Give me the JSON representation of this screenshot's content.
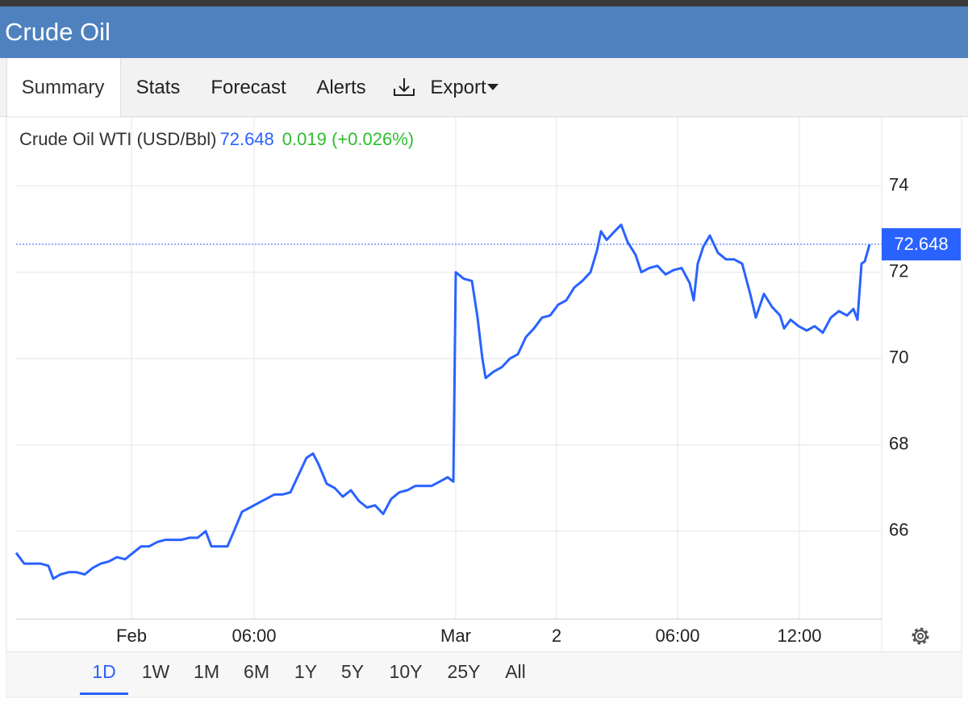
{
  "header": {
    "title": "Crude Oil"
  },
  "tabs": [
    "Summary",
    "Stats",
    "Forecast",
    "Alerts",
    "Export"
  ],
  "chart_data": {
    "type": "line",
    "x": [
      0,
      1,
      2,
      3,
      4,
      4.6,
      5.5,
      6.5,
      7.5,
      8.5,
      9.5,
      10.5,
      11.5,
      12.5,
      13.5,
      14.5,
      15.5,
      16.5,
      17.5,
      18.5,
      19.5,
      20.5,
      21.5,
      22.5,
      23.5,
      24.2,
      25.2,
      26.2,
      27,
      28,
      29,
      30,
      31,
      32,
      33,
      34,
      35,
      36,
      36.8,
      37.5,
      38.5,
      39.5,
      40.5,
      41.5,
      42.5,
      43.5,
      44.5,
      45.5,
      46.5,
      47.5,
      48.5,
      49.5,
      50.5,
      51.5,
      52.5,
      53.5,
      54.2,
      54.5,
      55.5,
      56.5,
      57.2,
      57.8,
      58.2,
      59.2,
      60.2,
      61.2,
      62.2,
      63.2,
      64.2,
      65.2,
      66.2,
      67.2,
      68.2,
      69.2,
      70.2,
      71.2,
      72,
      72.5,
      73.2,
      74.2,
      75,
      75.8,
      76.8,
      77.5,
      78.5,
      79.5,
      80.5,
      81.5,
      82.5,
      83.5,
      84,
      84.5,
      85.2,
      86,
      87,
      88,
      89,
      90,
      91,
      91.7,
      92.7,
      93.7,
      94.7,
      95.2,
      96,
      97,
      98,
      99,
      100,
      101,
      102,
      103,
      103.8,
      104.3,
      104.8,
      105.2,
      105.8
    ],
    "series": [
      {
        "name": "Crude Oil WTI (USD/Bbl)",
        "color": "#2962ff",
        "values": [
          65.5,
          65.25,
          65.25,
          65.25,
          65.2,
          64.9,
          65.0,
          65.05,
          65.05,
          65.0,
          65.15,
          65.25,
          65.3,
          65.4,
          65.35,
          65.5,
          65.65,
          65.65,
          65.75,
          65.8,
          65.8,
          65.8,
          65.85,
          65.85,
          66.0,
          65.65,
          65.65,
          65.65,
          66.0,
          66.45,
          66.55,
          66.65,
          66.75,
          66.85,
          66.85,
          66.9,
          67.3,
          67.7,
          67.8,
          67.55,
          67.1,
          67.0,
          66.8,
          66.95,
          66.7,
          66.55,
          66.6,
          66.4,
          66.75,
          66.9,
          66.95,
          67.05,
          67.05,
          67.05,
          67.15,
          67.25,
          67.15,
          72.0,
          71.85,
          71.8,
          70.95,
          70.0,
          69.55,
          69.7,
          69.8,
          70.0,
          70.1,
          70.5,
          70.7,
          70.95,
          71.0,
          71.25,
          71.35,
          71.65,
          71.8,
          72.0,
          72.5,
          72.95,
          72.75,
          72.95,
          73.1,
          72.7,
          72.4,
          72.0,
          72.1,
          72.15,
          71.95,
          72.05,
          72.1,
          71.75,
          71.35,
          72.2,
          72.6,
          72.85,
          72.45,
          72.3,
          72.3,
          72.2,
          71.5,
          70.95,
          71.5,
          71.2,
          71.0,
          70.7,
          70.9,
          70.75,
          70.65,
          70.75,
          70.6,
          70.95,
          71.1,
          71.0,
          71.15,
          70.9,
          72.2,
          72.25,
          72.648
        ]
      }
    ],
    "change": 0.019,
    "change_label": "(+0.026%)",
    "xlim": [
      0,
      107.3
    ],
    "xticks": [
      {
        "value": 14.3,
        "label": "Feb"
      },
      {
        "value": 29.5,
        "label": "06:00"
      },
      {
        "value": 54.5,
        "label": "Mar"
      },
      {
        "value": 67,
        "label": "2"
      },
      {
        "value": 82,
        "label": "06:00"
      },
      {
        "value": 97.1,
        "label": "12:00"
      }
    ],
    "ylim": [
      64,
      75.6
    ],
    "yticks": [
      66,
      68,
      70,
      72,
      74
    ],
    "grid": true
  },
  "ranges": [
    "1D",
    "1W",
    "1M",
    "6M",
    "1Y",
    "5Y",
    "10Y",
    "25Y",
    "All"
  ]
}
